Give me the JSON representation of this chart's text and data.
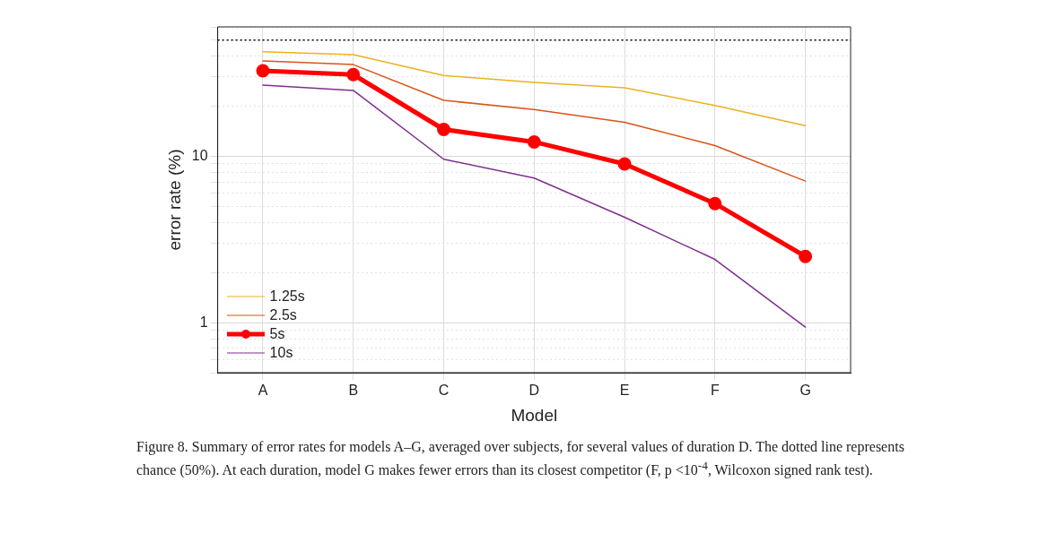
{
  "chart_data": {
    "type": "line",
    "xlabel": "Model",
    "ylabel": "error rate (%)",
    "categories": [
      "A",
      "B",
      "C",
      "D",
      "E",
      "F",
      "G"
    ],
    "series": [
      {
        "name": "1.25s",
        "color": "#edb120",
        "marker": "none",
        "values": [
          42.5,
          40.8,
          30.6,
          27.8,
          25.8,
          20.2,
          15.3
        ]
      },
      {
        "name": "2.5s",
        "color": "#d95319",
        "marker": "none",
        "values": [
          37.4,
          35.6,
          21.7,
          19.1,
          16.0,
          11.6,
          7.1
        ]
      },
      {
        "name": "5s",
        "color": "#ff0000",
        "marker": "circle",
        "values": [
          32.7,
          31.0,
          14.5,
          12.2,
          9.0,
          5.2,
          2.5
        ]
      },
      {
        "name": "10s",
        "color": "#7e2f8e",
        "marker": "none",
        "values": [
          26.8,
          24.9,
          9.6,
          7.4,
          4.3,
          2.4,
          0.94
        ]
      }
    ],
    "log": "y",
    "ylim": [
      0.5,
      60
    ],
    "yticks": [
      {
        "value": 0.5,
        "label": null
      },
      {
        "value": 0.6,
        "label": null
      },
      {
        "value": 0.7,
        "label": null
      },
      {
        "value": 0.8,
        "label": null
      },
      {
        "value": 0.9,
        "label": null
      },
      1,
      {
        "value": 2,
        "label": null
      },
      {
        "value": 3,
        "label": null
      },
      {
        "value": 4,
        "label": null
      },
      {
        "value": 5,
        "label": null
      },
      {
        "value": 6,
        "label": null
      },
      {
        "value": 7,
        "label": null
      },
      {
        "value": 8,
        "label": null
      },
      {
        "value": 9,
        "label": null
      },
      10,
      {
        "value": 20,
        "label": null
      },
      {
        "value": 30,
        "label": null
      },
      {
        "value": 40,
        "label": null
      },
      {
        "value": 50,
        "label": null
      },
      {
        "value": 60,
        "label": null
      }
    ],
    "ref_lines": [
      {
        "axis": "y",
        "value": 50,
        "color": "#000000",
        "line_style": "dotted"
      }
    ],
    "grid": true,
    "legend": "bottom left",
    "line_style": "solid",
    "annotations": [
      "Figure 8. Summary of error rates for models A–G, averaged over subjects, for several values of duration D. The dotted line represents chance (50%). At each duration, model G makes fewer errors than its closest competitor (F, p <10$^{-4}$, Wilcoxon signed rank test)."
    ]
  }
}
